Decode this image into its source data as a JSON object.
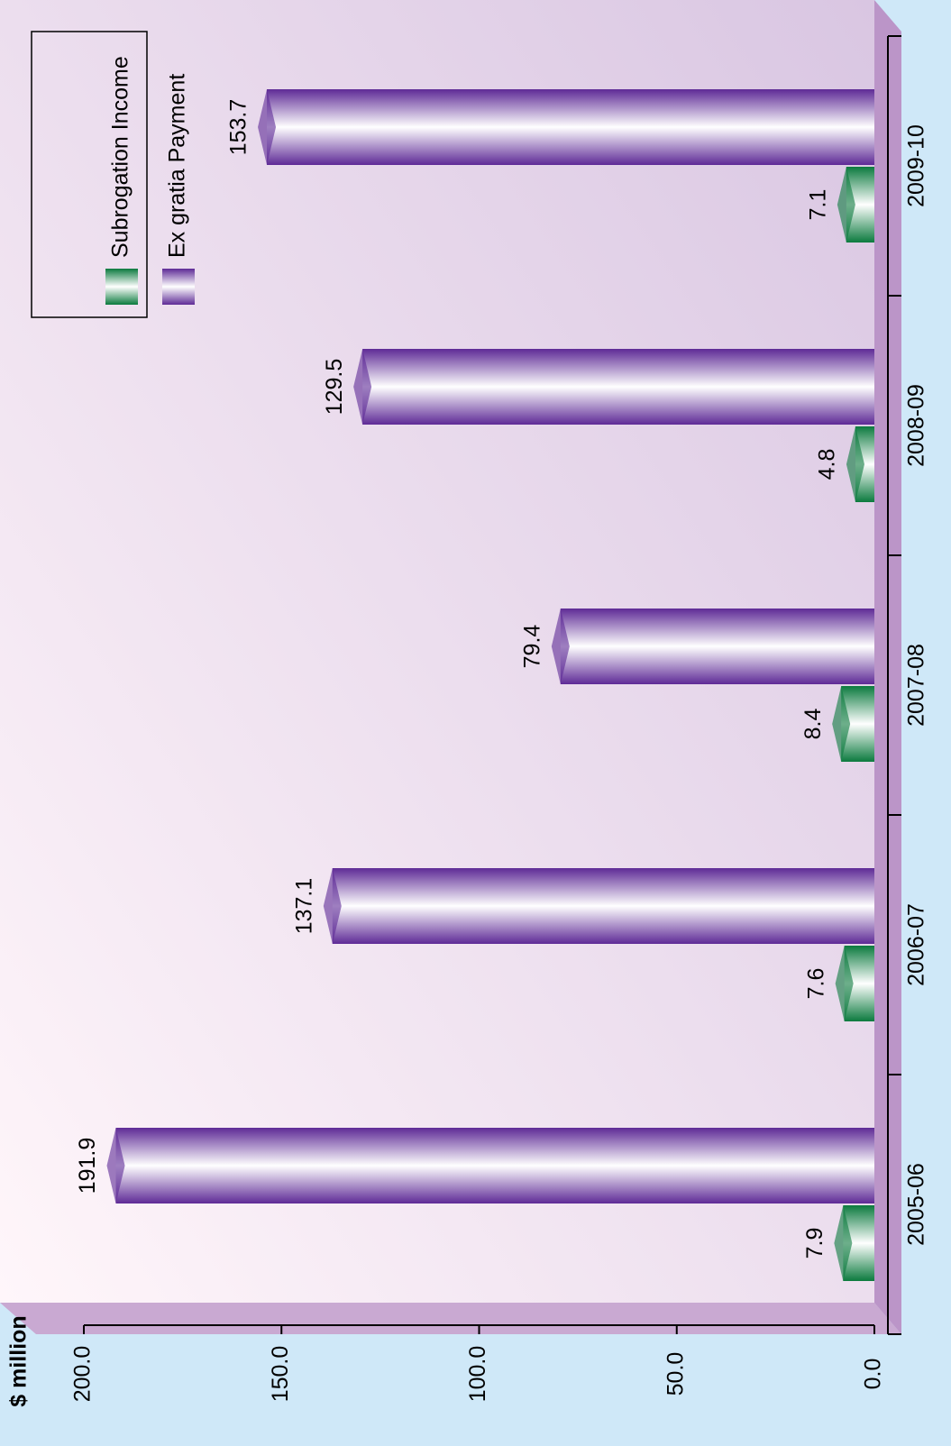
{
  "chart_data": {
    "type": "bar",
    "y_label": "$ million",
    "categories": [
      "2005-06",
      "2006-07",
      "2007-08",
      "2008-09",
      "2009-10"
    ],
    "series": [
      {
        "name": "Subrogation Income",
        "color": "#0b7a3e",
        "values": [
          7.9,
          7.6,
          8.4,
          4.8,
          7.1
        ]
      },
      {
        "name": "Ex gratia Payment",
        "color": "#5e2a96",
        "values": [
          191.9,
          137.1,
          79.4,
          129.5,
          153.7
        ]
      }
    ],
    "ylim": [
      0,
      200
    ],
    "yticks": [
      {
        "value": 0,
        "label": "0.0"
      },
      {
        "value": 50,
        "label": "50.0"
      },
      {
        "value": 100,
        "label": "100.0"
      },
      {
        "value": 150,
        "label": "150.0"
      },
      {
        "value": 200,
        "label": "200.0"
      }
    ]
  }
}
